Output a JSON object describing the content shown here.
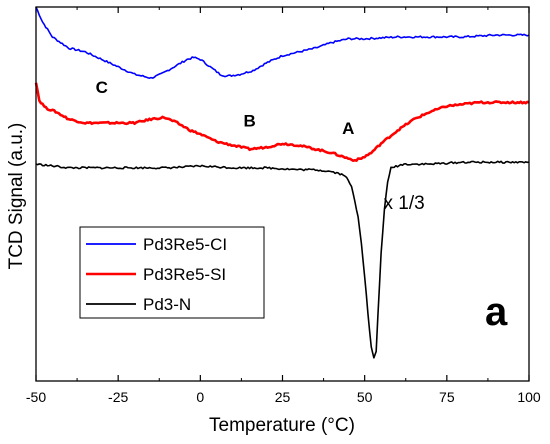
{
  "chart_data": {
    "type": "line",
    "title": "",
    "xlabel": "Temperature (°C)",
    "ylabel": "TCD Signal (a.u.)",
    "xlim": [
      -50,
      100
    ],
    "ylim": [
      0,
      100
    ],
    "x_ticks": [
      -50,
      -25,
      0,
      25,
      50,
      75,
      100
    ],
    "x_tick_labels": [
      "-50",
      "-25",
      "0",
      "25",
      "50",
      "75",
      "100"
    ],
    "y_ticks_labeled": false,
    "grid": false,
    "legend_position": "lower-left",
    "series": [
      {
        "name": "Pd3Re5-CI",
        "color": "#0000ff",
        "points": [
          [
            -50,
            100
          ],
          [
            -48,
            96
          ],
          [
            -45,
            92
          ],
          [
            -40,
            89
          ],
          [
            -35,
            88
          ],
          [
            -30,
            86
          ],
          [
            -25,
            84
          ],
          [
            -20,
            82
          ],
          [
            -15,
            81
          ],
          [
            -12,
            82
          ],
          [
            -8,
            84
          ],
          [
            -4,
            86
          ],
          [
            -2,
            86.5
          ],
          [
            0,
            86
          ],
          [
            3,
            84
          ],
          [
            6,
            82
          ],
          [
            8,
            81.5
          ],
          [
            12,
            82
          ],
          [
            16,
            83
          ],
          [
            20,
            85
          ],
          [
            25,
            87
          ],
          [
            30,
            88
          ],
          [
            35,
            89
          ],
          [
            40,
            90.5
          ],
          [
            45,
            91.5
          ],
          [
            50,
            91.5
          ],
          [
            60,
            92
          ],
          [
            70,
            92
          ],
          [
            80,
            92
          ],
          [
            90,
            92.5
          ],
          [
            100,
            92.5
          ]
        ]
      },
      {
        "name": "Pd3Re5-SI",
        "color": "#ff0000",
        "points": [
          [
            -50,
            80
          ],
          [
            -49,
            75
          ],
          [
            -47,
            73
          ],
          [
            -44,
            72
          ],
          [
            -40,
            70
          ],
          [
            -35,
            69
          ],
          [
            -30,
            69
          ],
          [
            -25,
            69
          ],
          [
            -20,
            69
          ],
          [
            -15,
            70
          ],
          [
            -11,
            70.5
          ],
          [
            -7,
            69
          ],
          [
            -3,
            67
          ],
          [
            0,
            66
          ],
          [
            5,
            64
          ],
          [
            10,
            63
          ],
          [
            15,
            62
          ],
          [
            20,
            62.5
          ],
          [
            25,
            63.5
          ],
          [
            30,
            63
          ],
          [
            35,
            62
          ],
          [
            40,
            61
          ],
          [
            45,
            59.5
          ],
          [
            47,
            59
          ],
          [
            49,
            59.5
          ],
          [
            52,
            61
          ],
          [
            55,
            63.5
          ],
          [
            60,
            67
          ],
          [
            65,
            70
          ],
          [
            70,
            72
          ],
          [
            75,
            73.5
          ],
          [
            80,
            74
          ],
          [
            85,
            74.5
          ],
          [
            90,
            74.5
          ],
          [
            95,
            74.5
          ],
          [
            100,
            74.5
          ]
        ]
      },
      {
        "name": "Pd3-N",
        "color": "#000000",
        "points": [
          [
            -50,
            58
          ],
          [
            -45,
            57.5
          ],
          [
            -40,
            57
          ],
          [
            -30,
            57
          ],
          [
            -20,
            57
          ],
          [
            -10,
            57
          ],
          [
            -5,
            57.2
          ],
          [
            0,
            57.5
          ],
          [
            10,
            57
          ],
          [
            20,
            57
          ],
          [
            30,
            56.5
          ],
          [
            35,
            56.5
          ],
          [
            40,
            56
          ],
          [
            44,
            55
          ],
          [
            46,
            52
          ],
          [
            48,
            44
          ],
          [
            49,
            37
          ],
          [
            50,
            28
          ],
          [
            51,
            18
          ],
          [
            52,
            9
          ],
          [
            52.8,
            6
          ],
          [
            53.5,
            8
          ],
          [
            54,
            17
          ],
          [
            55,
            34
          ],
          [
            56,
            46
          ],
          [
            57,
            53
          ],
          [
            58,
            57
          ],
          [
            62,
            58
          ],
          [
            70,
            58
          ],
          [
            80,
            58.5
          ],
          [
            90,
            58.5
          ],
          [
            100,
            58.5
          ]
        ]
      }
    ],
    "annotations": [
      {
        "text": "C",
        "x": -30,
        "y": 77
      },
      {
        "text": "B",
        "x": 15,
        "y": 68
      },
      {
        "text": "A",
        "x": 45,
        "y": 66
      },
      {
        "text": "x 1/3",
        "x": 62,
        "y": 46
      },
      {
        "text": "a",
        "x": 90,
        "y": 15
      }
    ]
  }
}
